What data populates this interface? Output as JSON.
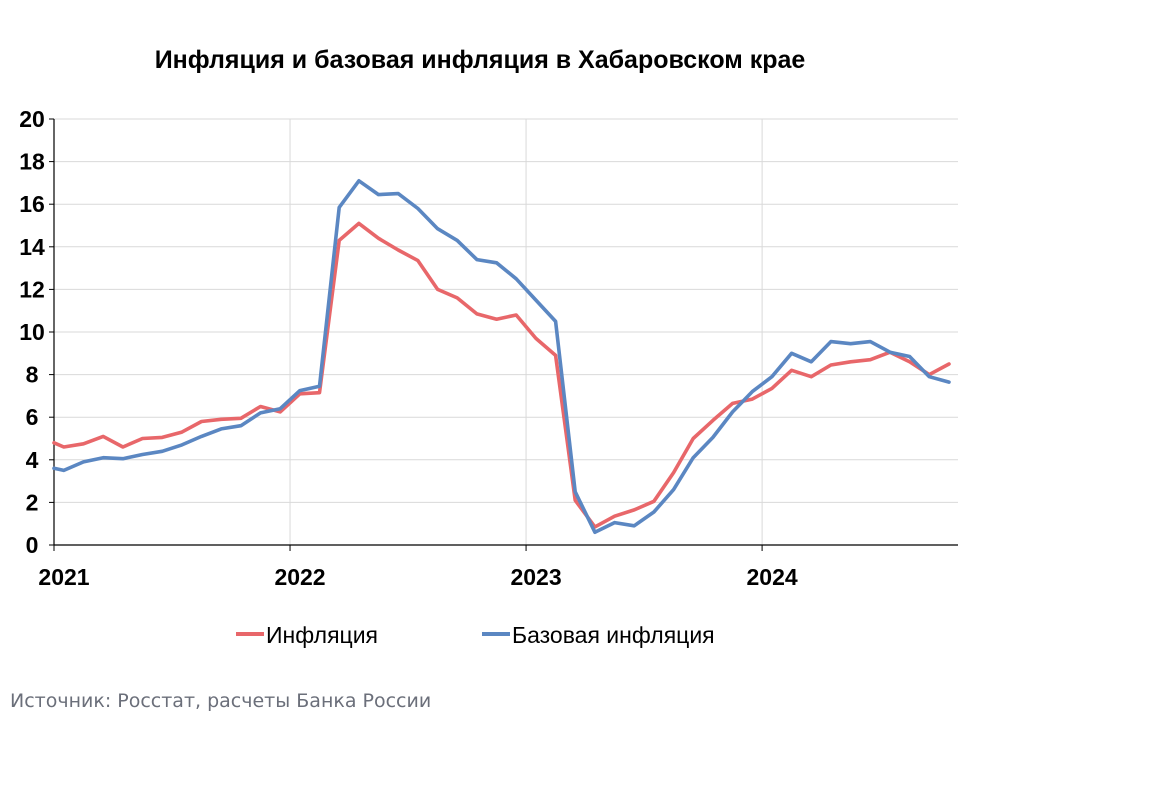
{
  "chart_data": {
    "type": "line",
    "title": "Инфляция и базовая инфляция в Хабаровском крае",
    "xlabel": "",
    "ylabel": "",
    "ylim": [
      0,
      20
    ],
    "yticks": [
      "0",
      "2",
      "4",
      "6",
      "8",
      "10",
      "12",
      "14",
      "16",
      "18",
      "20"
    ],
    "xlim": [
      2021.0,
      2024.83
    ],
    "xticks": [
      {
        "value": 2021,
        "label": "2021"
      },
      {
        "value": 2022,
        "label": "2022"
      },
      {
        "value": 2023,
        "label": "2023"
      },
      {
        "value": 2024,
        "label": "2024"
      }
    ],
    "grid": true,
    "legend_position": "bottom",
    "series": [
      {
        "name": "Инфляция",
        "color": "#e8676a",
        "x": [
          2021.0,
          2021.0417,
          2021.125,
          2021.2083,
          2021.2917,
          2021.375,
          2021.4583,
          2021.5417,
          2021.625,
          2021.7083,
          2021.7917,
          2021.875,
          2021.9583,
          2022.0417,
          2022.125,
          2022.2083,
          2022.2917,
          2022.375,
          2022.4583,
          2022.5417,
          2022.625,
          2022.7083,
          2022.7917,
          2022.875,
          2022.9583,
          2023.0417,
          2023.125,
          2023.2083,
          2023.2917,
          2023.375,
          2023.4583,
          2023.5417,
          2023.625,
          2023.7083,
          2023.7917,
          2023.875,
          2023.9583,
          2024.0417,
          2024.125,
          2024.2083,
          2024.2917,
          2024.375,
          2024.4583,
          2024.5417,
          2024.625,
          2024.7083,
          2024.7917
        ],
        "y": [
          4.8,
          4.6,
          4.75,
          5.1,
          4.6,
          5.0,
          5.05,
          5.3,
          5.8,
          5.9,
          5.95,
          6.5,
          6.25,
          7.1,
          7.15,
          14.3,
          15.1,
          14.4,
          13.85,
          13.35,
          12.0,
          11.6,
          10.85,
          10.6,
          10.8,
          9.7,
          8.9,
          2.1,
          0.85,
          1.35,
          1.65,
          2.05,
          3.4,
          5.0,
          5.85,
          6.65,
          6.85,
          7.35,
          8.2,
          7.9,
          8.45,
          8.6,
          8.7,
          9.05,
          8.6,
          8.0,
          8.5
        ]
      },
      {
        "name": "Базовая инфляция",
        "color": "#5b87c2",
        "x": [
          2021.0,
          2021.0417,
          2021.125,
          2021.2083,
          2021.2917,
          2021.375,
          2021.4583,
          2021.5417,
          2021.625,
          2021.7083,
          2021.7917,
          2021.875,
          2021.9583,
          2022.0417,
          2022.125,
          2022.2083,
          2022.2917,
          2022.375,
          2022.4583,
          2022.5417,
          2022.625,
          2022.7083,
          2022.7917,
          2022.875,
          2022.9583,
          2023.0417,
          2023.125,
          2023.2083,
          2023.2917,
          2023.375,
          2023.4583,
          2023.5417,
          2023.625,
          2023.7083,
          2023.7917,
          2023.875,
          2023.9583,
          2024.0417,
          2024.125,
          2024.2083,
          2024.2917,
          2024.375,
          2024.4583,
          2024.5417,
          2024.625,
          2024.7083,
          2024.7917
        ],
        "y": [
          3.6,
          3.5,
          3.9,
          4.1,
          4.05,
          4.25,
          4.4,
          4.7,
          5.1,
          5.45,
          5.6,
          6.2,
          6.4,
          7.25,
          7.45,
          15.85,
          17.1,
          16.45,
          16.5,
          15.8,
          14.85,
          14.3,
          13.4,
          13.25,
          12.5,
          11.5,
          10.5,
          2.5,
          0.6,
          1.05,
          0.9,
          1.55,
          2.6,
          4.1,
          5.05,
          6.25,
          7.2,
          7.9,
          9.0,
          8.6,
          9.55,
          9.45,
          9.55,
          9.05,
          8.85,
          7.9,
          7.65
        ]
      }
    ]
  },
  "source_note": "Источник: Росстат, расчеты Банка России"
}
